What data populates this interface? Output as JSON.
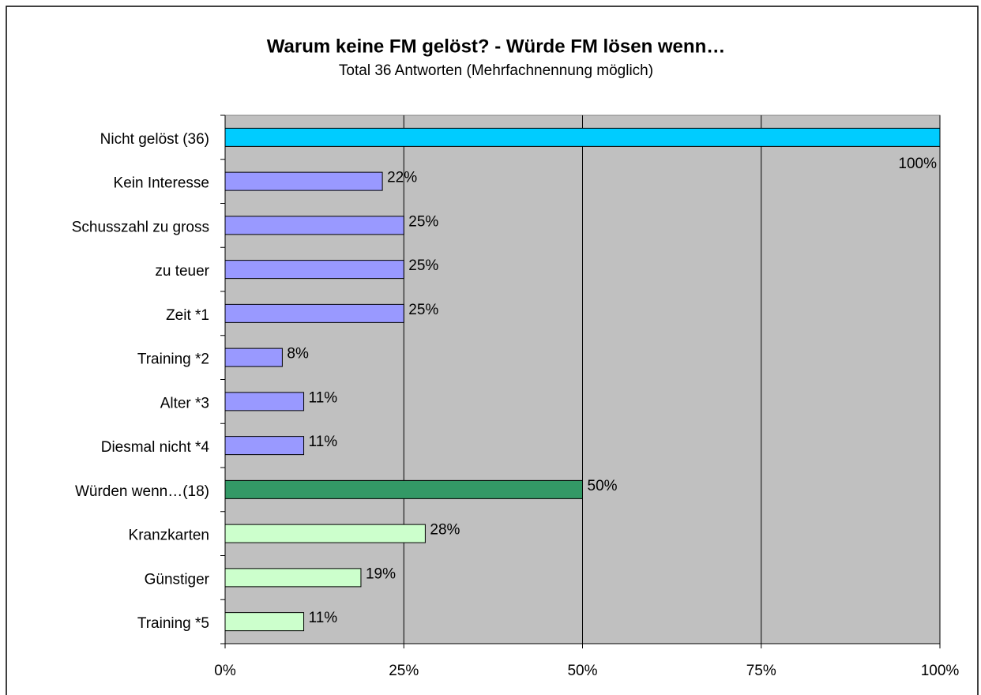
{
  "chart_data": {
    "type": "barh",
    "title": "Warum keine FM gelöst? - Würde FM lösen wenn…",
    "subtitle": "Total 36 Antworten (Mehrfachnennung möglich)",
    "categories": [
      "Nicht gelöst (36)",
      "Kein Interesse",
      "Schusszahl zu gross",
      "zu teuer",
      "Zeit *1",
      "Training *2",
      "Alter *3",
      "Diesmal nicht *4",
      "Würden wenn…(18)",
      "Kranzkarten",
      "Günstiger",
      "Training *5"
    ],
    "values": [
      100,
      22,
      25,
      25,
      25,
      8,
      11,
      11,
      50,
      28,
      19,
      11
    ],
    "value_labels": [
      "100%",
      "22%",
      "25%",
      "25%",
      "25%",
      "8%",
      "11%",
      "11%",
      "50%",
      "28%",
      "19%",
      "11%"
    ],
    "colors": [
      "#00ccff",
      "#9999ff",
      "#9999ff",
      "#9999ff",
      "#9999ff",
      "#9999ff",
      "#9999ff",
      "#9999ff",
      "#339966",
      "#ccffcc",
      "#ccffcc",
      "#ccffcc"
    ],
    "xlim": [
      0,
      100
    ],
    "xticks": [
      {
        "value": 0,
        "label": "0%"
      },
      {
        "value": 25,
        "label": "25%"
      },
      {
        "value": 50,
        "label": "50%"
      },
      {
        "value": 75,
        "label": "75%"
      },
      {
        "value": 100,
        "label": "100%"
      }
    ],
    "grid": true
  }
}
